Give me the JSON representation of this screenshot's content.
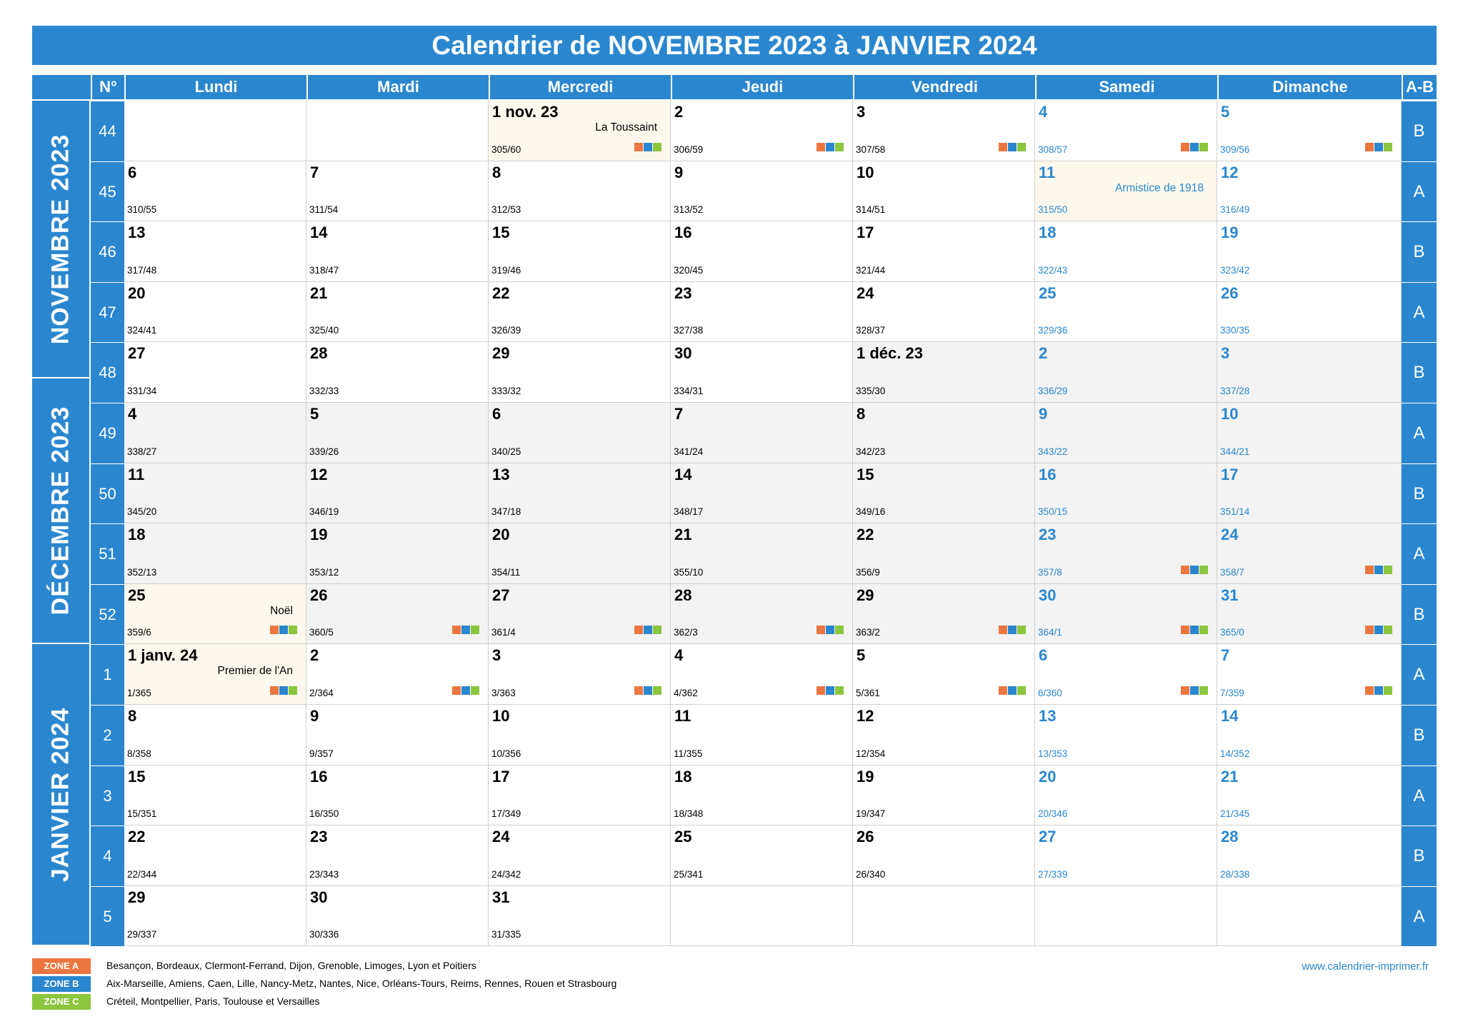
{
  "title": "Calendrier de NOVEMBRE 2023 à JANVIER 2024",
  "header": {
    "week_no": "N°",
    "ab": "A-B",
    "days": [
      "Lundi",
      "Mardi",
      "Mercredi",
      "Jeudi",
      "Vendredi",
      "Samedi",
      "Dimanche"
    ]
  },
  "months": [
    {
      "label": "NOVEMBRE 2023",
      "first_week": 0,
      "weeks": 4.6
    },
    {
      "label": "DÉCEMBRE 2023",
      "first_week": 4.6,
      "weeks": 4.4
    },
    {
      "label": "JANVIER 2024",
      "first_week": 9,
      "weeks": 5
    }
  ],
  "colors": {
    "accent": "#2a87cf",
    "zone_a": "#ec7640",
    "zone_b": "#2a87cf",
    "zone_c": "#8cc63e"
  },
  "weeks": [
    {
      "no": "44",
      "ab": "B",
      "days": [
        null,
        null,
        {
          "n": "1 nov. 23",
          "i": "305/60",
          "h": "La Toussaint",
          "z": true,
          "holi": true
        },
        {
          "n": "2",
          "i": "306/59",
          "z": true
        },
        {
          "n": "3",
          "i": "307/58",
          "z": true
        },
        {
          "n": "4",
          "i": "308/57",
          "z": true
        },
        {
          "n": "5",
          "i": "309/56",
          "z": true
        }
      ]
    },
    {
      "no": "45",
      "ab": "A",
      "days": [
        {
          "n": "6",
          "i": "310/55"
        },
        {
          "n": "7",
          "i": "311/54"
        },
        {
          "n": "8",
          "i": "312/53"
        },
        {
          "n": "9",
          "i": "313/52"
        },
        {
          "n": "10",
          "i": "314/51"
        },
        {
          "n": "11",
          "i": "315/50",
          "h": "Armistice de 1918",
          "holi": true
        },
        {
          "n": "12",
          "i": "316/49"
        }
      ]
    },
    {
      "no": "46",
      "ab": "B",
      "days": [
        {
          "n": "13",
          "i": "317/48"
        },
        {
          "n": "14",
          "i": "318/47"
        },
        {
          "n": "15",
          "i": "319/46"
        },
        {
          "n": "16",
          "i": "320/45"
        },
        {
          "n": "17",
          "i": "321/44"
        },
        {
          "n": "18",
          "i": "322/43"
        },
        {
          "n": "19",
          "i": "323/42"
        }
      ]
    },
    {
      "no": "47",
      "ab": "A",
      "days": [
        {
          "n": "20",
          "i": "324/41"
        },
        {
          "n": "21",
          "i": "325/40"
        },
        {
          "n": "22",
          "i": "326/39"
        },
        {
          "n": "23",
          "i": "327/38"
        },
        {
          "n": "24",
          "i": "328/37"
        },
        {
          "n": "25",
          "i": "329/36"
        },
        {
          "n": "26",
          "i": "330/35"
        }
      ]
    },
    {
      "no": "48",
      "ab": "B",
      "days": [
        {
          "n": "27",
          "i": "331/34"
        },
        {
          "n": "28",
          "i": "332/33"
        },
        {
          "n": "29",
          "i": "333/32"
        },
        {
          "n": "30",
          "i": "334/31"
        },
        {
          "n": "1 déc. 23",
          "i": "335/30",
          "grey": true
        },
        {
          "n": "2",
          "i": "336/29",
          "grey": true
        },
        {
          "n": "3",
          "i": "337/28",
          "grey": true
        }
      ]
    },
    {
      "no": "49",
      "ab": "A",
      "days": [
        {
          "n": "4",
          "i": "338/27",
          "grey": true
        },
        {
          "n": "5",
          "i": "339/26",
          "grey": true
        },
        {
          "n": "6",
          "i": "340/25",
          "grey": true
        },
        {
          "n": "7",
          "i": "341/24",
          "grey": true
        },
        {
          "n": "8",
          "i": "342/23",
          "grey": true
        },
        {
          "n": "9",
          "i": "343/22",
          "grey": true
        },
        {
          "n": "10",
          "i": "344/21",
          "grey": true
        }
      ]
    },
    {
      "no": "50",
      "ab": "B",
      "days": [
        {
          "n": "11",
          "i": "345/20",
          "grey": true
        },
        {
          "n": "12",
          "i": "346/19",
          "grey": true
        },
        {
          "n": "13",
          "i": "347/18",
          "grey": true
        },
        {
          "n": "14",
          "i": "348/17",
          "grey": true
        },
        {
          "n": "15",
          "i": "349/16",
          "grey": true
        },
        {
          "n": "16",
          "i": "350/15",
          "grey": true
        },
        {
          "n": "17",
          "i": "351/14",
          "grey": true
        }
      ]
    },
    {
      "no": "51",
      "ab": "A",
      "days": [
        {
          "n": "18",
          "i": "352/13",
          "grey": true
        },
        {
          "n": "19",
          "i": "353/12",
          "grey": true
        },
        {
          "n": "20",
          "i": "354/11",
          "grey": true
        },
        {
          "n": "21",
          "i": "355/10",
          "grey": true
        },
        {
          "n": "22",
          "i": "356/9",
          "grey": true
        },
        {
          "n": "23",
          "i": "357/8",
          "grey": true,
          "z": true
        },
        {
          "n": "24",
          "i": "358/7",
          "grey": true,
          "z": true
        }
      ]
    },
    {
      "no": "52",
      "ab": "B",
      "days": [
        {
          "n": "25",
          "i": "359/6",
          "h": "Noël",
          "z": true,
          "holi": true
        },
        {
          "n": "26",
          "i": "360/5",
          "grey": true,
          "z": true
        },
        {
          "n": "27",
          "i": "361/4",
          "grey": true,
          "z": true
        },
        {
          "n": "28",
          "i": "362/3",
          "grey": true,
          "z": true
        },
        {
          "n": "29",
          "i": "363/2",
          "grey": true,
          "z": true
        },
        {
          "n": "30",
          "i": "364/1",
          "grey": true,
          "z": true
        },
        {
          "n": "31",
          "i": "365/0",
          "grey": true,
          "z": true
        }
      ]
    },
    {
      "no": "1",
      "ab": "A",
      "days": [
        {
          "n": "1 janv. 24",
          "i": "1/365",
          "h": "Premier de l'An",
          "z": true,
          "holi": true
        },
        {
          "n": "2",
          "i": "2/364",
          "z": true
        },
        {
          "n": "3",
          "i": "3/363",
          "z": true
        },
        {
          "n": "4",
          "i": "4/362",
          "z": true
        },
        {
          "n": "5",
          "i": "5/361",
          "z": true
        },
        {
          "n": "6",
          "i": "6/360",
          "z": true
        },
        {
          "n": "7",
          "i": "7/359",
          "z": true
        }
      ]
    },
    {
      "no": "2",
      "ab": "B",
      "days": [
        {
          "n": "8",
          "i": "8/358"
        },
        {
          "n": "9",
          "i": "9/357"
        },
        {
          "n": "10",
          "i": "10/356"
        },
        {
          "n": "11",
          "i": "11/355"
        },
        {
          "n": "12",
          "i": "12/354"
        },
        {
          "n": "13",
          "i": "13/353"
        },
        {
          "n": "14",
          "i": "14/352"
        }
      ]
    },
    {
      "no": "3",
      "ab": "A",
      "days": [
        {
          "n": "15",
          "i": "15/351"
        },
        {
          "n": "16",
          "i": "16/350"
        },
        {
          "n": "17",
          "i": "17/349"
        },
        {
          "n": "18",
          "i": "18/348"
        },
        {
          "n": "19",
          "i": "19/347"
        },
        {
          "n": "20",
          "i": "20/346"
        },
        {
          "n": "21",
          "i": "21/345"
        }
      ]
    },
    {
      "no": "4",
      "ab": "B",
      "days": [
        {
          "n": "22",
          "i": "22/344"
        },
        {
          "n": "23",
          "i": "23/343"
        },
        {
          "n": "24",
          "i": "24/342"
        },
        {
          "n": "25",
          "i": "25/341"
        },
        {
          "n": "26",
          "i": "26/340"
        },
        {
          "n": "27",
          "i": "27/339"
        },
        {
          "n": "28",
          "i": "28/338"
        }
      ]
    },
    {
      "no": "5",
      "ab": "A",
      "days": [
        {
          "n": "29",
          "i": "29/337"
        },
        {
          "n": "30",
          "i": "30/336"
        },
        {
          "n": "31",
          "i": "31/335"
        },
        null,
        null,
        null,
        null
      ]
    }
  ],
  "legend": [
    {
      "badge": "ZONE A",
      "color": "#ec7640",
      "text": "Besançon, Bordeaux, Clermont-Ferrand, Dijon, Grenoble, Limoges, Lyon et Poitiers"
    },
    {
      "badge": "ZONE B",
      "color": "#2a87cf",
      "text": "Aix-Marseille, Amiens, Caen, Lille, Nancy-Metz, Nantes, Nice, Orléans-Tours, Reims, Rennes, Rouen et Strasbourg"
    },
    {
      "badge": "ZONE C",
      "color": "#8cc63e",
      "text": "Créteil, Montpellier, Paris, Toulouse et Versailles"
    }
  ],
  "website": "www.calendrier-imprimer.fr"
}
